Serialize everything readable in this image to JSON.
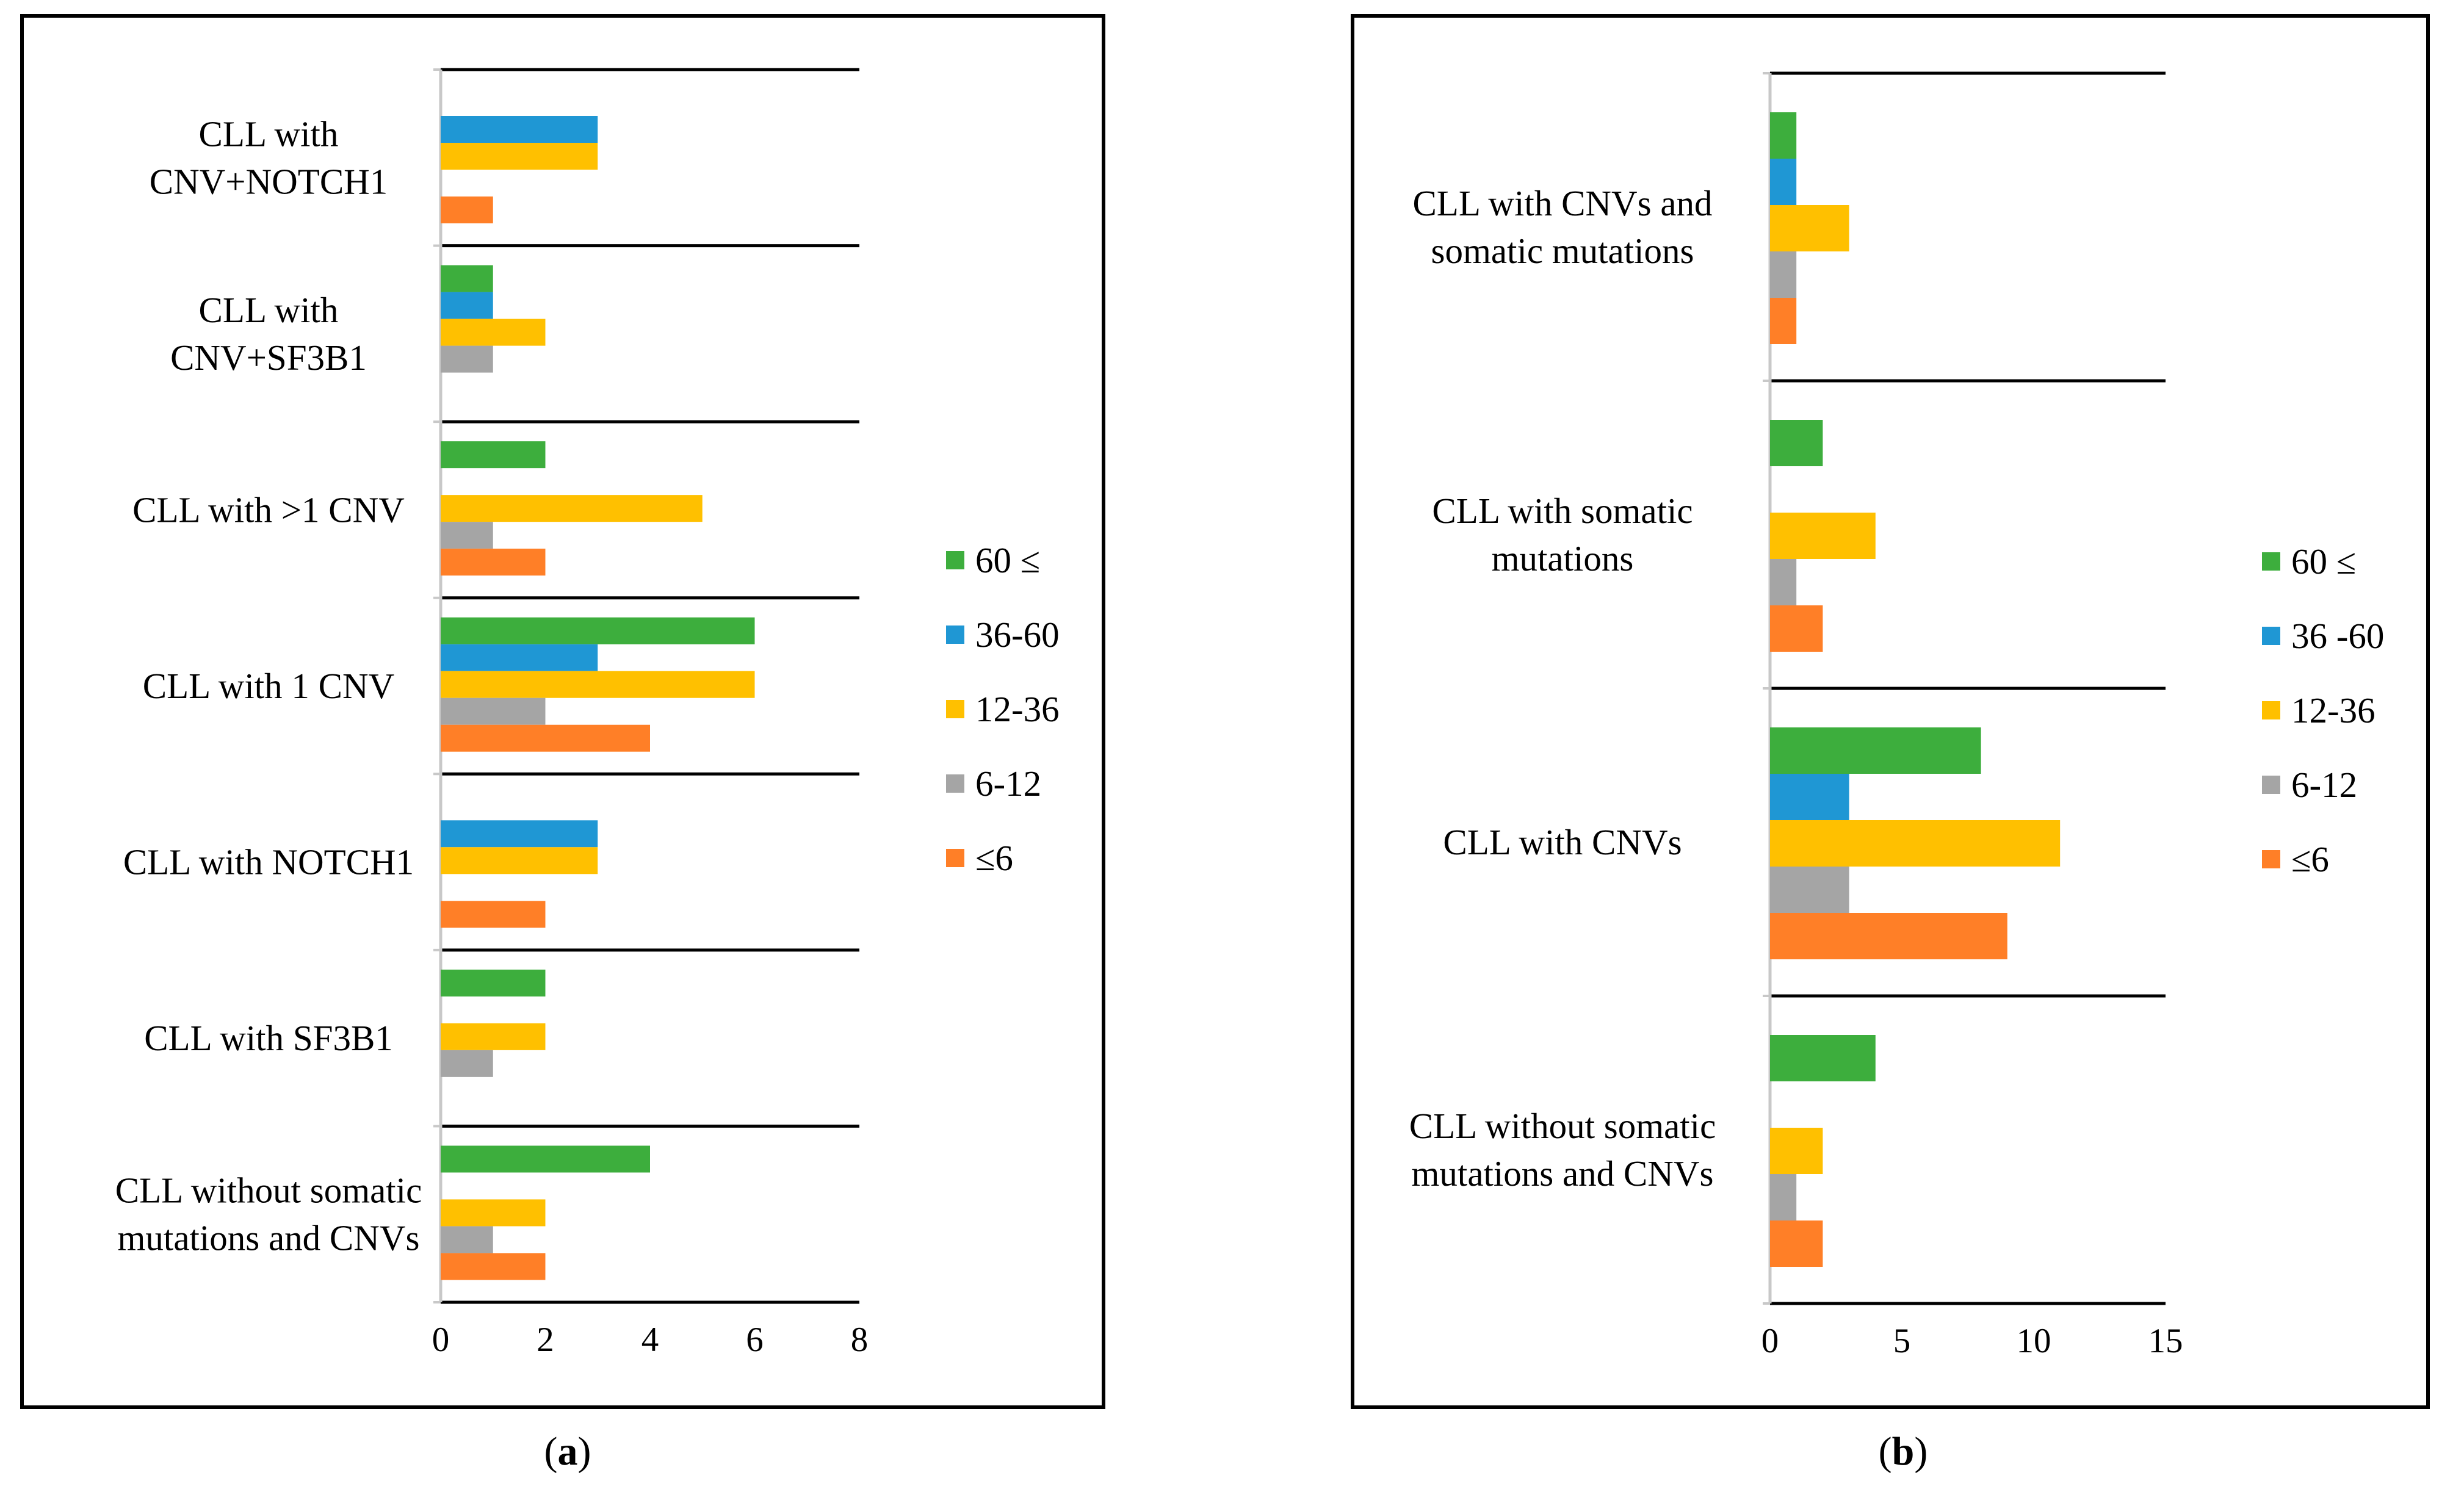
{
  "chart_data": [
    {
      "id": "a",
      "type": "bar",
      "orientation": "horizontal",
      "panel_label": "a",
      "categories": [
        [
          "CLL with",
          "CNV+NOTCH1"
        ],
        [
          "CLL with",
          "CNV+SF3B1"
        ],
        [
          "CLL with >1 CNV"
        ],
        [
          "CLL with 1 CNV"
        ],
        [
          "CLL with NOTCH1"
        ],
        [
          "CLL with SF3B1"
        ],
        [
          "CLL without somatic",
          "mutations and CNVs"
        ]
      ],
      "series": [
        {
          "name": "60 ≤",
          "color": "#3DAE3D",
          "values": [
            0,
            1,
            2,
            6,
            0,
            2,
            4
          ]
        },
        {
          "name": "36-60",
          "color": "#1F97D4",
          "values": [
            3,
            1,
            0,
            3,
            3,
            0,
            0
          ]
        },
        {
          "name": "12-36",
          "color": "#FFC000",
          "values": [
            3,
            2,
            5,
            6,
            3,
            2,
            2
          ]
        },
        {
          "name": "6-12",
          "color": "#A5A5A5",
          "values": [
            0,
            1,
            1,
            2,
            0,
            1,
            1
          ]
        },
        {
          "name": "≤6",
          "color": "#FF7F27",
          "values": [
            1,
            0,
            2,
            4,
            2,
            0,
            2
          ]
        }
      ],
      "xlim": [
        0,
        8
      ],
      "xticks": [
        "0",
        "2",
        "4",
        "6",
        "8"
      ],
      "title": "",
      "xlabel": "",
      "ylabel": "",
      "legend": "right"
    },
    {
      "id": "b",
      "type": "bar",
      "orientation": "horizontal",
      "panel_label": "b",
      "categories": [
        [
          "CLL with CNVs and",
          "somatic mutations"
        ],
        [
          "CLL with somatic",
          "mutations"
        ],
        [
          "CLL with CNVs"
        ],
        [
          "CLL without somatic",
          "mutations and CNVs"
        ]
      ],
      "series": [
        {
          "name": "60 ≤",
          "color": "#3DAE3D",
          "values": [
            1,
            2,
            8,
            4
          ]
        },
        {
          "name": "36 -60",
          "color": "#1F97D4",
          "values": [
            1,
            0,
            3,
            0
          ]
        },
        {
          "name": "12-36",
          "color": "#FFC000",
          "values": [
            3,
            4,
            11,
            2
          ]
        },
        {
          "name": "6-12",
          "color": "#A5A5A5",
          "values": [
            1,
            1,
            3,
            1
          ]
        },
        {
          "name": "≤6",
          "color": "#FF7F27",
          "values": [
            1,
            2,
            9,
            2
          ]
        }
      ],
      "xlim": [
        0,
        15
      ],
      "xticks": [
        "0",
        "5",
        "10",
        "15"
      ],
      "title": "",
      "xlabel": "",
      "ylabel": "",
      "legend": "right"
    }
  ]
}
